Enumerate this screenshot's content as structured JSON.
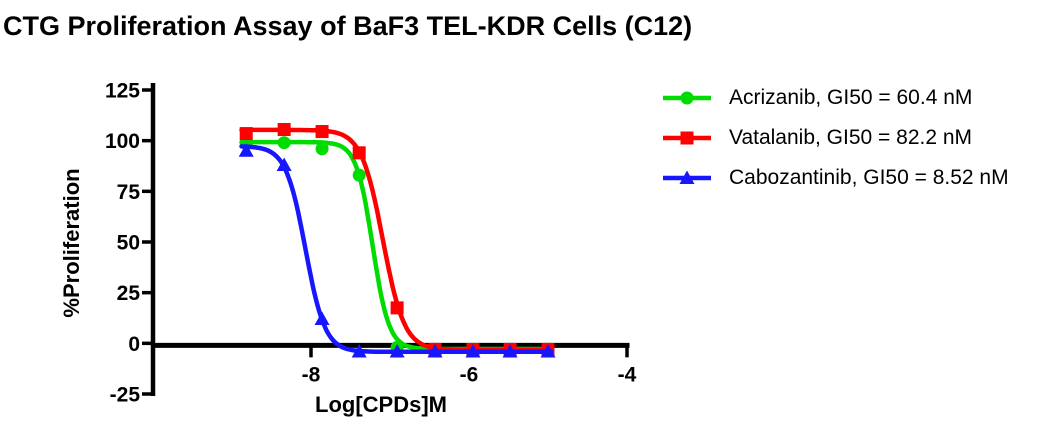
{
  "title": "CTG Proliferation Assay of BaF3 TEL-KDR Cells (C12)",
  "chart_data": {
    "type": "line",
    "subtype": "dose-response-sigmoid",
    "title": "CTG Proliferation Assay of BaF3 TEL-KDR Cells (C12)",
    "xlabel": "Log[CPDs]M",
    "ylabel": "%Proliferation",
    "xlim": [
      -10,
      -4
    ],
    "ylim": [
      -25,
      125
    ],
    "x_ticks": [
      -8,
      -6,
      -4
    ],
    "x_tick_labels": [
      "-8",
      "-6",
      "-4"
    ],
    "y_ticks": [
      125,
      100,
      75,
      50,
      25,
      0,
      -25
    ],
    "y_tick_labels": [
      "125",
      "100",
      "75",
      "50",
      "25",
      "0",
      "-25"
    ],
    "grid": false,
    "legend_position": "right-of-plot",
    "x": [
      -8.82,
      -8.34,
      -7.86,
      -7.39,
      -6.91,
      -6.43,
      -5.95,
      -5.48,
      -5.0
    ],
    "series": [
      {
        "name": "Acrizanib",
        "gi50": "60.4 nM",
        "legend": "Acrizanib, GI50 = 60.4 nM",
        "color": "#00db00",
        "marker": "circle",
        "values": [
          98.5,
          99,
          96,
          83,
          -2,
          -3,
          -3,
          -3,
          -3
        ],
        "fit": {
          "top": 99.3,
          "bottom": -2.8,
          "logIC50": -7.22,
          "hill": 4.2
        }
      },
      {
        "name": "Vatalanib",
        "gi50": "82.2 nM",
        "legend": "Vatalanib, GI50 = 82.2 nM",
        "color": "#fe0000",
        "marker": "square",
        "values": [
          103.5,
          105.5,
          104.5,
          94,
          17.5,
          -3,
          -3,
          -3,
          -3
        ],
        "fit": {
          "top": 105.3,
          "bottom": -3.2,
          "logIC50": -7.09,
          "hill": 3.2
        }
      },
      {
        "name": "Cabozantinib",
        "gi50": "8.52 nM",
        "legend": "Cabozantinib, GI50 = 8.52 nM",
        "color": "#1717ff",
        "marker": "triangle",
        "values": [
          95,
          88,
          12,
          -4,
          -4,
          -4,
          -4,
          -4,
          -4
        ],
        "fit": {
          "top": 97.3,
          "bottom": -4.2,
          "logIC50": -8.07,
          "hill": 3.5
        }
      }
    ]
  }
}
